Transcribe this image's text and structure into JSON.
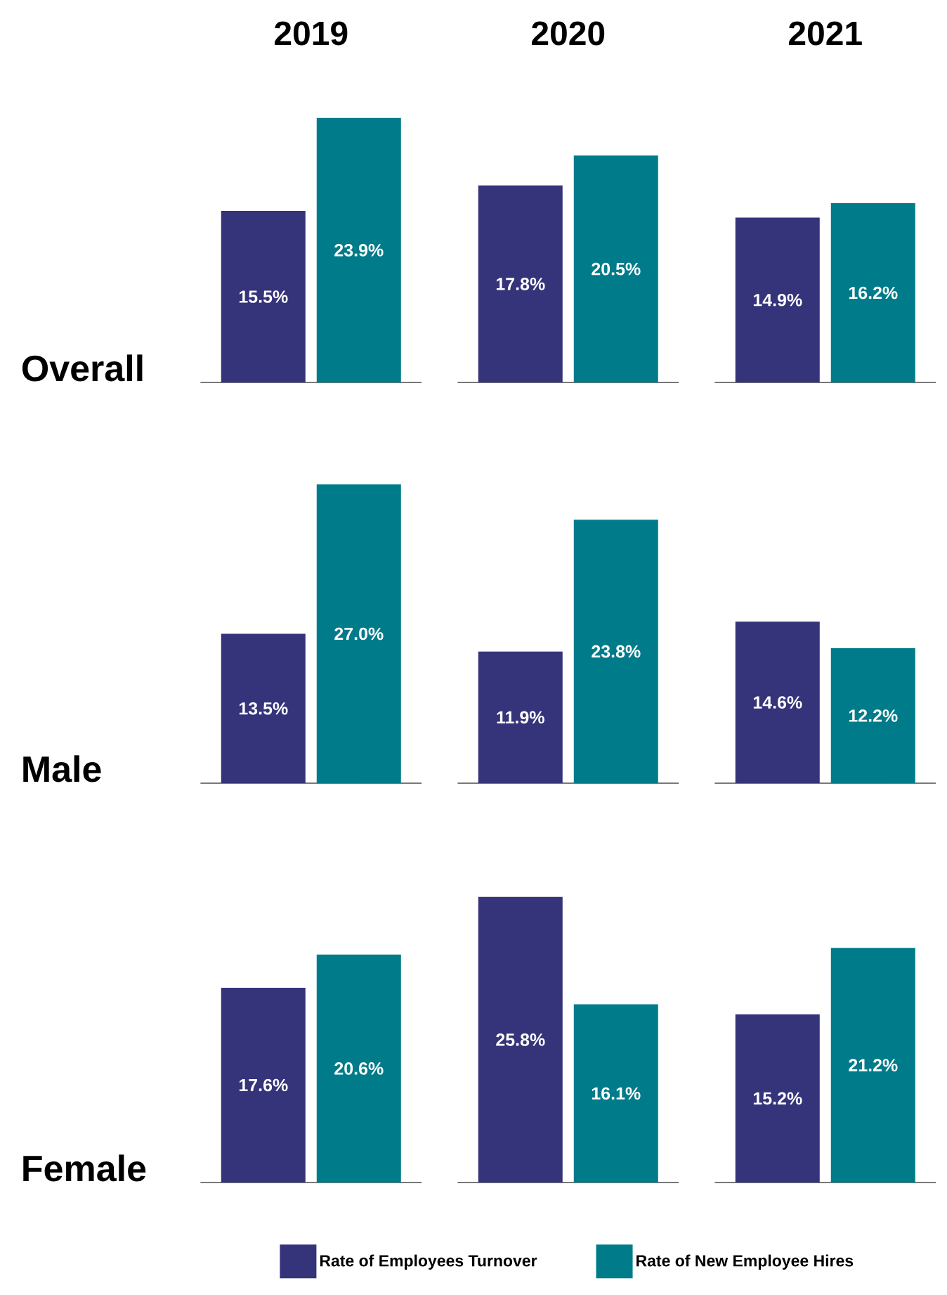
{
  "chart_data": [
    {
      "type": "bar",
      "title": "Overall",
      "categories": [
        "2019",
        "2020",
        "2021"
      ],
      "series": [
        {
          "color": "#35337a",
          "values": [
            15.5,
            17.8,
            14.9
          ],
          "value_labels": [
            "15.5%",
            "17.8%",
            "14.9%"
          ]
        },
        {
          "color": "#007b8a",
          "values": [
            23.9,
            20.5,
            16.2
          ],
          "value_labels": [
            "23.9%",
            "20.5%",
            "16.2%"
          ]
        }
      ]
    },
    {
      "type": "bar",
      "title": "Male",
      "categories": [
        null,
        null,
        null
      ],
      "series": [
        {
          "color": "#35337a",
          "values": [
            13.5,
            11.9,
            14.6
          ],
          "value_labels": [
            "13.5%",
            "11.9%",
            "14.6%"
          ]
        },
        {
          "color": "#007b8a",
          "values": [
            27.0,
            23.8,
            12.2
          ],
          "value_labels": [
            "27.0%",
            "23.8%",
            "12.2%"
          ]
        }
      ]
    },
    {
      "type": "bar",
      "title": "Female",
      "categories": [
        null,
        null,
        null
      ],
      "legend": "bottom",
      "series": [
        {
          "name": "Rate of Employees Turnover",
          "color": "#35337a",
          "values": [
            17.6,
            25.8,
            15.2
          ],
          "value_labels": [
            "17.6%",
            "25.8%",
            "15.2%"
          ]
        },
        {
          "name": "Rate of New Employee Hires",
          "color": "#007b8a",
          "values": [
            20.6,
            16.1,
            21.2
          ],
          "value_labels": [
            "20.6%",
            "16.1%",
            "21.2%"
          ]
        }
      ]
    }
  ]
}
